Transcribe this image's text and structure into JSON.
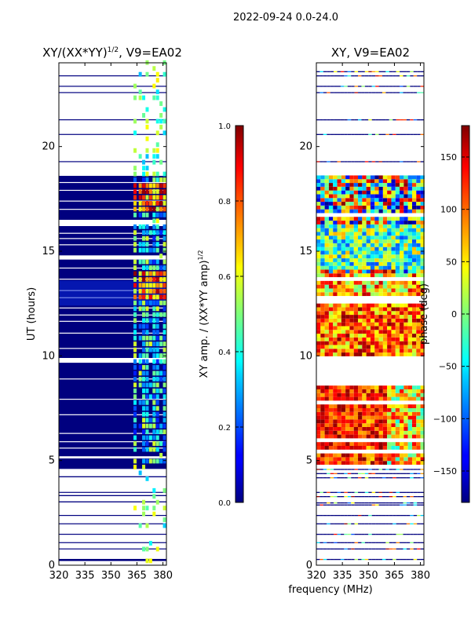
{
  "chart_data": [
    {
      "type": "heatmap",
      "title_main": "XY/(XX*YY)",
      "title_sup": "1/2",
      "title_tail": ", V9=EA02",
      "xlim": [
        320,
        382
      ],
      "ylim": [
        0,
        24
      ],
      "xticks": [
        "320",
        "335",
        "350",
        "365",
        "380"
      ],
      "xtick_values": [
        320,
        335,
        350,
        365,
        380
      ],
      "yticks": [
        "0",
        "5",
        "10",
        "15",
        "20"
      ],
      "ytick_values": [
        0,
        5,
        10,
        15,
        20
      ],
      "ylabel": "UT (hours)",
      "colorbar": {
        "label_main": "XY amp. / (XX*YY amp)",
        "label_sup": "1/2",
        "range": [
          0.0,
          1.0
        ],
        "ticks": [
          "0.0",
          "0.2",
          "0.4",
          "0.6",
          "0.8",
          "1.0"
        ],
        "tick_values": [
          0.0,
          0.2,
          0.4,
          0.6,
          0.8,
          1.0
        ],
        "colormap": "jet"
      },
      "data_blocks": [
        [
          0.2,
          0.3
        ],
        [
          3.0,
          3.05
        ],
        [
          3.3,
          3.35
        ],
        [
          4.2,
          4.25
        ],
        [
          4.6,
          5.1
        ],
        [
          5.2,
          9.7
        ],
        [
          9.9,
          14.6
        ],
        [
          14.8,
          16.2
        ],
        [
          16.5,
          18.6
        ]
      ],
      "bright_band": [
        363,
        381
      ],
      "hot_rows": [
        [
          12.5,
          14.0
        ],
        [
          16.8,
          18.2
        ]
      ]
    },
    {
      "type": "heatmap",
      "title": "XY, V9=EA02",
      "xlim": [
        320,
        382
      ],
      "ylim": [
        0,
        24
      ],
      "xticks": [
        "320",
        "335",
        "350",
        "365",
        "380"
      ],
      "xtick_values": [
        320,
        335,
        350,
        365,
        380
      ],
      "yticks": [
        "0",
        "5",
        "10",
        "15",
        "20"
      ],
      "ytick_values": [
        0,
        5,
        10,
        15,
        20
      ],
      "colorbar": {
        "label": "phase (deg)",
        "range": [
          -180,
          180
        ],
        "ticks": [
          "−150",
          "−100",
          "−50",
          "0",
          "50",
          "100",
          "150"
        ],
        "tick_values": [
          -150,
          -100,
          -50,
          0,
          50,
          100,
          150
        ],
        "colormap": "jet"
      },
      "data_blocks": [
        [
          4.8,
          8.6
        ],
        [
          9.8,
          18.6
        ]
      ]
    }
  ],
  "suptitle": "2022-09-24 0.0-24.0",
  "xlabel_shared": "frequency (MHz)"
}
